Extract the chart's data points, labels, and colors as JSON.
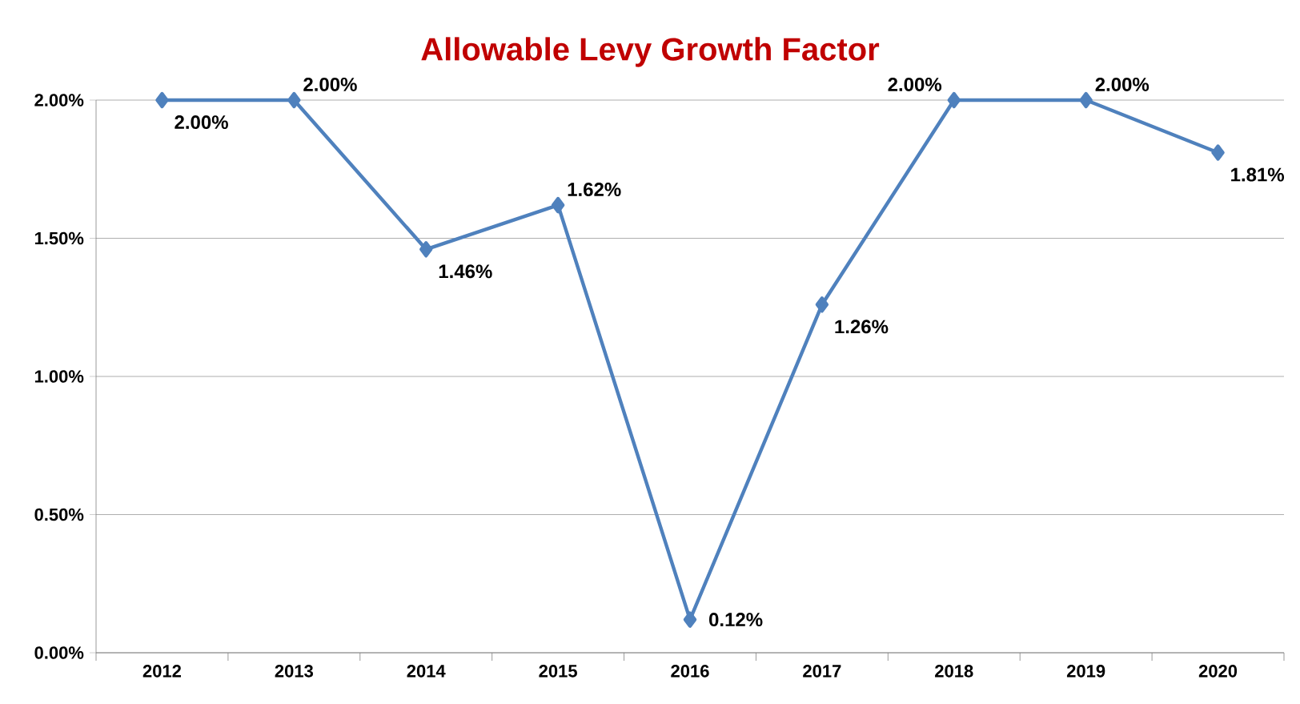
{
  "chart_data": {
    "type": "line",
    "title": "Allowable Levy Growth Factor",
    "categories": [
      "2012",
      "2013",
      "2014",
      "2015",
      "2016",
      "2017",
      "2018",
      "2019",
      "2020"
    ],
    "series": [
      {
        "color": "#4f81bd",
        "values": [
          2.0,
          2.0,
          1.46,
          1.62,
          0.12,
          1.26,
          2.0,
          2.0,
          1.81
        ],
        "value_labels": [
          "2.00%",
          "2.00%",
          "1.46%",
          "1.62%",
          "0.12%",
          "1.26%",
          "2.00%",
          "2.00%",
          "1.81%"
        ]
      }
    ],
    "ylim": [
      0,
      2
    ],
    "yticks": [
      {
        "value": 0,
        "label": "0.00%"
      },
      {
        "value": 0.5,
        "label": "0.50%"
      },
      {
        "value": 1,
        "label": "1.00%"
      },
      {
        "value": 1.5,
        "label": "1.50%"
      },
      {
        "value": 2,
        "label": "2.00%"
      }
    ],
    "grid": "y",
    "marker": "diamond",
    "line_style": "solid"
  }
}
